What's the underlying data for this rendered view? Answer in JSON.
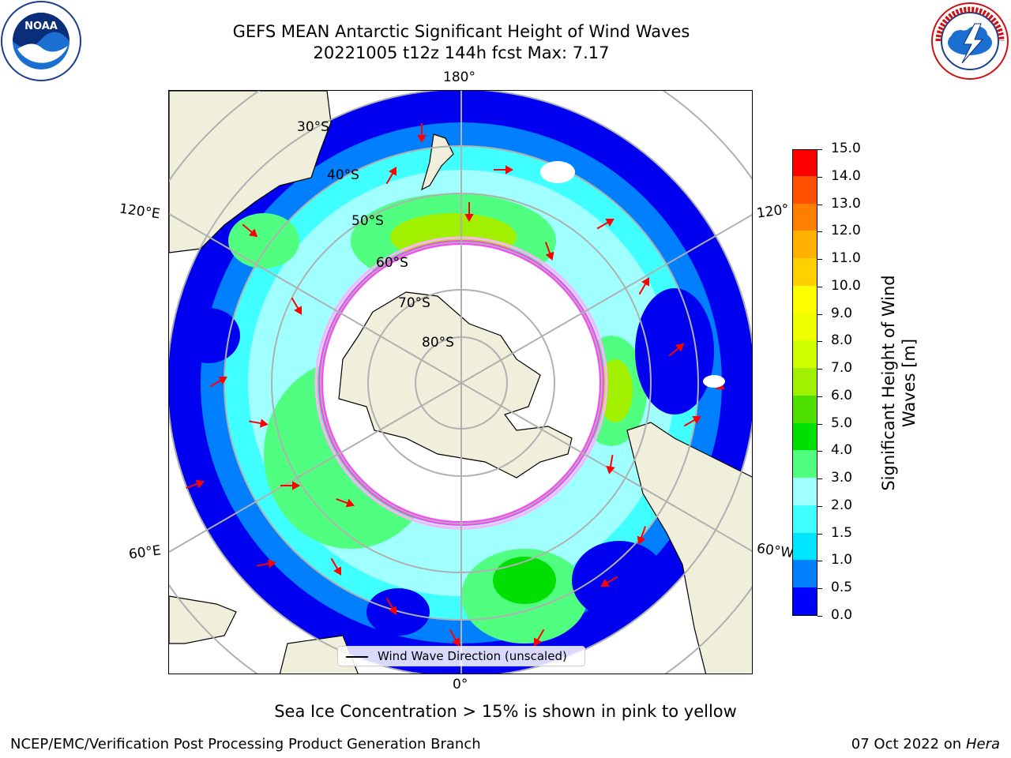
{
  "title_line1": "GEFS MEAN Antarctic Significant Height of Wind Waves",
  "title_line2": "20221005 t12z 144h fcst   Max: 7.17",
  "logos": {
    "left": "NOAA",
    "right": "NATIONAL WEATHER SERVICE"
  },
  "longitude_labels": [
    "180°",
    "120°E",
    "120°",
    "60°E",
    "60°W",
    "0°"
  ],
  "latitude_labels": [
    "30°S",
    "40°S",
    "50°S",
    "60°S",
    "70°S",
    "80°S"
  ],
  "colorbar": {
    "label": "Significant Height of Wind Waves [m]",
    "ticks": [
      "0.0",
      "0.5",
      "1.0",
      "1.5",
      "2.0",
      "3.0",
      "4.0",
      "5.0",
      "6.0",
      "7.0",
      "8.0",
      "9.0",
      "10.0",
      "11.0",
      "12.0",
      "13.0",
      "14.0",
      "15.0"
    ],
    "colors": [
      "#0000ff",
      "#0080ff",
      "#00e5ff",
      "#40ffff",
      "#a0ffff",
      "#50ff80",
      "#00e000",
      "#50e000",
      "#a0f000",
      "#d0ff00",
      "#f0ff00",
      "#ffff00",
      "#ffd000",
      "#ffb000",
      "#ff8000",
      "#ff5000",
      "#ff0000"
    ]
  },
  "legend": {
    "label": "Wind Wave Direction (unscaled)"
  },
  "note": "Sea Ice Concentration > 15% is shown in pink to yellow",
  "footer_left": "NCEP/EMC/Verification Post Processing Product Generation Branch",
  "footer_date": "07 Oct 2022 on",
  "footer_host": "Hera"
}
